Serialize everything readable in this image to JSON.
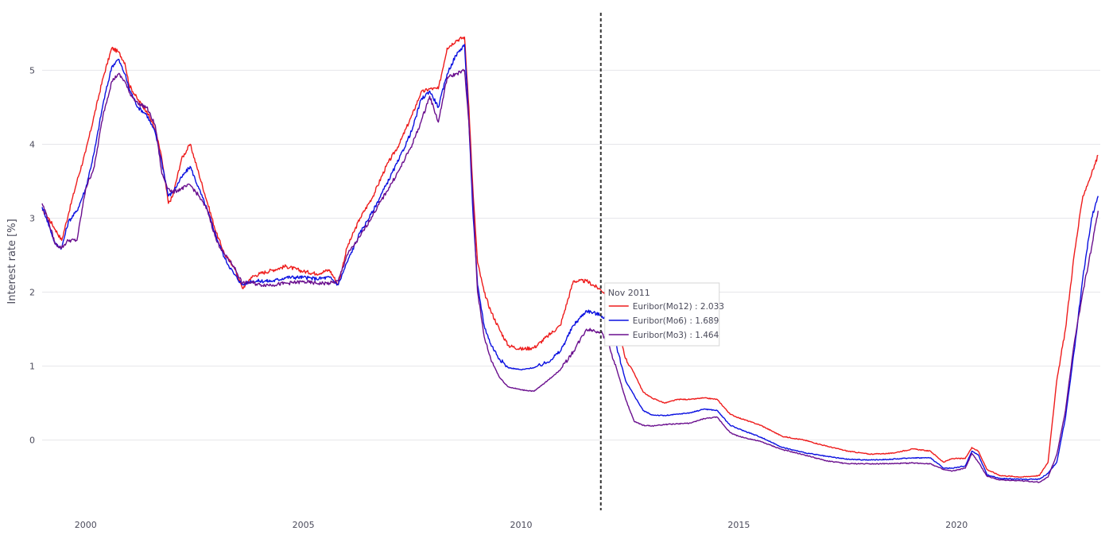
{
  "chart_data": {
    "type": "line",
    "title": "",
    "xlabel": "",
    "ylabel": "Interest rate [%]",
    "xlim": [
      1999.0,
      2023.3
    ],
    "ylim": [
      -0.95,
      5.8
    ],
    "x_ticks": [
      2000,
      2005,
      2010,
      2015,
      2020
    ],
    "x_tick_labels": [
      "2000",
      "2005",
      "2010",
      "2015",
      "2020"
    ],
    "y_ticks": [
      0,
      1,
      2,
      3,
      4,
      5
    ],
    "y_tick_labels": [
      "0",
      "1",
      "2",
      "3",
      "4",
      "5"
    ],
    "grid": true,
    "cursor": {
      "x": 2011.83,
      "style": "dashed"
    },
    "hover": {
      "title": "Nov 2011",
      "items": [
        {
          "name": "Euribor(Mo12)",
          "value": "2.033",
          "color": "#ee1c1c"
        },
        {
          "name": "Euribor(Mo6)",
          "value": "1.689",
          "color": "#0a10e0"
        },
        {
          "name": "Euribor(Mo3)",
          "value": "1.464",
          "color": "#6a0f8e"
        }
      ]
    },
    "series": [
      {
        "name": "Euribor(Mo12)",
        "color": "#ee1c1c",
        "x": [
          1999.0,
          1999.1,
          1999.3,
          1999.45,
          1999.6,
          1999.8,
          2000.0,
          2000.2,
          2000.4,
          2000.6,
          2000.75,
          2000.9,
          2001.0,
          2001.2,
          2001.4,
          2001.6,
          2001.75,
          2001.9,
          2002.0,
          2002.2,
          2002.4,
          2002.6,
          2002.8,
          2003.0,
          2003.2,
          2003.4,
          2003.6,
          2003.8,
          2004.0,
          2004.3,
          2004.6,
          2005.0,
          2005.3,
          2005.6,
          2005.8,
          2006.0,
          2006.3,
          2006.6,
          2006.9,
          2007.2,
          2007.5,
          2007.7,
          2007.9,
          2008.1,
          2008.3,
          2008.5,
          2008.7,
          2008.8,
          2008.9,
          2009.0,
          2009.15,
          2009.3,
          2009.5,
          2009.7,
          2010.0,
          2010.3,
          2010.6,
          2010.9,
          2011.2,
          2011.5,
          2011.83,
          2012.0,
          2012.2,
          2012.4,
          2012.6,
          2012.8,
          2013.0,
          2013.3,
          2013.6,
          2013.9,
          2014.2,
          2014.5,
          2014.8,
          2015.0,
          2015.5,
          2016.0,
          2016.5,
          2017.0,
          2017.5,
          2018.0,
          2018.5,
          2019.0,
          2019.4,
          2019.7,
          2019.9,
          2020.2,
          2020.35,
          2020.5,
          2020.7,
          2021.0,
          2021.5,
          2021.9,
          2022.1,
          2022.3,
          2022.5,
          2022.7,
          2022.9,
          2023.1,
          2023.25
        ],
        "values": [
          3.1,
          3.05,
          2.85,
          2.7,
          3.05,
          3.5,
          3.9,
          4.4,
          4.9,
          5.3,
          5.25,
          5.1,
          4.8,
          4.6,
          4.45,
          4.2,
          3.8,
          3.2,
          3.3,
          3.8,
          4.0,
          3.6,
          3.2,
          2.8,
          2.5,
          2.35,
          2.05,
          2.2,
          2.25,
          2.3,
          2.35,
          2.28,
          2.25,
          2.3,
          2.1,
          2.6,
          3.0,
          3.3,
          3.7,
          4.0,
          4.4,
          4.7,
          4.75,
          4.75,
          5.3,
          5.4,
          5.45,
          4.5,
          3.3,
          2.4,
          2.0,
          1.75,
          1.5,
          1.28,
          1.23,
          1.25,
          1.4,
          1.55,
          2.15,
          2.15,
          2.033,
          1.95,
          1.6,
          1.1,
          0.9,
          0.65,
          0.57,
          0.5,
          0.55,
          0.55,
          0.57,
          0.55,
          0.35,
          0.3,
          0.2,
          0.05,
          0.0,
          -0.08,
          -0.15,
          -0.19,
          -0.18,
          -0.12,
          -0.15,
          -0.3,
          -0.25,
          -0.25,
          -0.1,
          -0.15,
          -0.4,
          -0.48,
          -0.5,
          -0.48,
          -0.3,
          0.8,
          1.5,
          2.5,
          3.3,
          3.6,
          3.85
        ]
      },
      {
        "name": "Euribor(Mo6)",
        "color": "#0a10e0",
        "x": [
          1999.0,
          1999.1,
          1999.3,
          1999.45,
          1999.6,
          1999.8,
          2000.0,
          2000.2,
          2000.4,
          2000.6,
          2000.75,
          2000.9,
          2001.0,
          2001.2,
          2001.4,
          2001.6,
          2001.75,
          2001.9,
          2002.0,
          2002.2,
          2002.4,
          2002.6,
          2002.8,
          2003.0,
          2003.2,
          2003.4,
          2003.6,
          2003.8,
          2004.0,
          2004.3,
          2004.6,
          2005.0,
          2005.3,
          2005.6,
          2005.8,
          2006.0,
          2006.3,
          2006.6,
          2006.9,
          2007.2,
          2007.5,
          2007.7,
          2007.9,
          2008.1,
          2008.3,
          2008.5,
          2008.7,
          2008.8,
          2008.9,
          2009.0,
          2009.15,
          2009.3,
          2009.5,
          2009.7,
          2010.0,
          2010.3,
          2010.6,
          2010.9,
          2011.2,
          2011.5,
          2011.83,
          2012.0,
          2012.2,
          2012.4,
          2012.6,
          2012.8,
          2013.0,
          2013.3,
          2013.6,
          2013.9,
          2014.2,
          2014.5,
          2014.8,
          2015.0,
          2015.5,
          2016.0,
          2016.5,
          2017.0,
          2017.5,
          2018.0,
          2018.5,
          2019.0,
          2019.4,
          2019.7,
          2019.9,
          2020.2,
          2020.35,
          2020.5,
          2020.7,
          2021.0,
          2021.5,
          2021.9,
          2022.1,
          2022.3,
          2022.5,
          2022.7,
          2022.9,
          2023.1,
          2023.25
        ],
        "values": [
          3.15,
          3.0,
          2.65,
          2.6,
          2.95,
          3.1,
          3.4,
          3.9,
          4.55,
          5.05,
          5.15,
          4.95,
          4.75,
          4.5,
          4.4,
          4.15,
          3.75,
          3.3,
          3.35,
          3.55,
          3.7,
          3.4,
          3.1,
          2.75,
          2.45,
          2.25,
          2.1,
          2.15,
          2.15,
          2.15,
          2.2,
          2.2,
          2.18,
          2.2,
          2.1,
          2.4,
          2.8,
          3.1,
          3.45,
          3.8,
          4.2,
          4.6,
          4.72,
          4.5,
          4.95,
          5.2,
          5.35,
          4.3,
          3.0,
          2.1,
          1.55,
          1.3,
          1.1,
          0.98,
          0.95,
          0.98,
          1.05,
          1.2,
          1.55,
          1.75,
          1.689,
          1.62,
          1.25,
          0.8,
          0.6,
          0.4,
          0.34,
          0.33,
          0.35,
          0.37,
          0.42,
          0.4,
          0.2,
          0.15,
          0.04,
          -0.1,
          -0.17,
          -0.22,
          -0.26,
          -0.27,
          -0.26,
          -0.24,
          -0.24,
          -0.38,
          -0.38,
          -0.35,
          -0.15,
          -0.2,
          -0.47,
          -0.52,
          -0.53,
          -0.53,
          -0.45,
          -0.3,
          0.3,
          1.2,
          2.2,
          3.0,
          3.3
        ]
      },
      {
        "name": "Euribor(Mo3)",
        "color": "#6a0f8e",
        "x": [
          1999.0,
          1999.1,
          1999.3,
          1999.45,
          1999.6,
          1999.8,
          2000.0,
          2000.2,
          2000.4,
          2000.6,
          2000.75,
          2000.9,
          2001.0,
          2001.2,
          2001.4,
          2001.6,
          2001.75,
          2001.9,
          2002.0,
          2002.2,
          2002.4,
          2002.6,
          2002.8,
          2003.0,
          2003.2,
          2003.4,
          2003.6,
          2003.8,
          2004.0,
          2004.3,
          2004.6,
          2005.0,
          2005.3,
          2005.6,
          2005.8,
          2006.0,
          2006.3,
          2006.6,
          2006.9,
          2007.2,
          2007.5,
          2007.7,
          2007.9,
          2008.1,
          2008.3,
          2008.5,
          2008.7,
          2008.8,
          2008.9,
          2009.0,
          2009.15,
          2009.3,
          2009.5,
          2009.7,
          2010.0,
          2010.3,
          2010.6,
          2010.9,
          2011.2,
          2011.5,
          2011.83,
          2012.0,
          2012.2,
          2012.4,
          2012.6,
          2012.8,
          2013.0,
          2013.3,
          2013.6,
          2013.9,
          2014.2,
          2014.5,
          2014.8,
          2015.0,
          2015.5,
          2016.0,
          2016.5,
          2017.0,
          2017.5,
          2018.0,
          2018.5,
          2019.0,
          2019.4,
          2019.7,
          2019.9,
          2020.2,
          2020.35,
          2020.5,
          2020.7,
          2021.0,
          2021.5,
          2021.9,
          2022.1,
          2022.3,
          2022.5,
          2022.7,
          2022.9,
          2023.1,
          2023.25
        ],
        "values": [
          3.2,
          3.05,
          2.65,
          2.6,
          2.7,
          2.7,
          3.4,
          3.7,
          4.4,
          4.85,
          4.95,
          4.85,
          4.7,
          4.55,
          4.5,
          4.25,
          3.6,
          3.4,
          3.35,
          3.4,
          3.45,
          3.3,
          3.1,
          2.7,
          2.5,
          2.35,
          2.12,
          2.13,
          2.1,
          2.1,
          2.12,
          2.14,
          2.12,
          2.12,
          2.15,
          2.5,
          2.75,
          3.05,
          3.35,
          3.65,
          4.0,
          4.3,
          4.65,
          4.3,
          4.9,
          4.95,
          5.0,
          4.3,
          3.2,
          2.0,
          1.4,
          1.1,
          0.85,
          0.72,
          0.68,
          0.66,
          0.8,
          0.95,
          1.2,
          1.5,
          1.464,
          1.3,
          0.95,
          0.55,
          0.25,
          0.2,
          0.19,
          0.21,
          0.22,
          0.23,
          0.29,
          0.31,
          0.1,
          0.05,
          -0.02,
          -0.13,
          -0.2,
          -0.28,
          -0.32,
          -0.32,
          -0.32,
          -0.31,
          -0.32,
          -0.4,
          -0.42,
          -0.38,
          -0.18,
          -0.3,
          -0.49,
          -0.54,
          -0.55,
          -0.57,
          -0.5,
          -0.2,
          0.4,
          1.3,
          2.0,
          2.6,
          3.1
        ]
      }
    ]
  }
}
